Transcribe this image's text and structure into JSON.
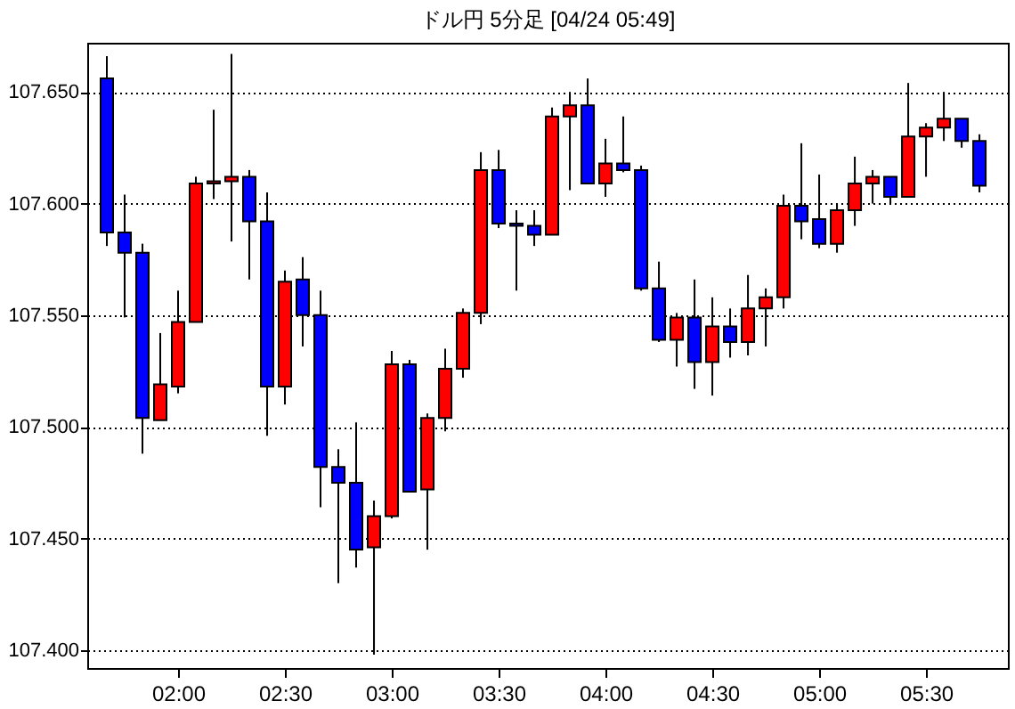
{
  "chart_data": {
    "type": "candlestick",
    "title": "ドル円 5分足 [04/24 05:49]",
    "x": [
      1.6667,
      1.75,
      1.8333,
      1.9167,
      2,
      2.0833,
      2.1667,
      2.25,
      2.3333,
      2.4167,
      2.5,
      2.5833,
      2.6667,
      2.75,
      2.8333,
      2.9167,
      3,
      3.0833,
      3.1667,
      3.25,
      3.3333,
      3.4167,
      3.5,
      3.5833,
      3.6667,
      3.75,
      3.8333,
      3.9167,
      4,
      4.0833,
      4.1667,
      4.25,
      4.3333,
      4.4167,
      4.5,
      4.5833,
      4.6667,
      4.75,
      4.8333,
      4.9167,
      5,
      5.0833,
      5.1667,
      5.25,
      5.3333,
      5.4167,
      5.5,
      5.5833,
      5.6667,
      5.75
    ],
    "ohlc": [
      [
        107.656,
        107.666,
        107.581,
        107.587
      ],
      [
        107.587,
        107.604,
        107.549,
        107.578
      ],
      [
        107.578,
        107.582,
        107.488,
        107.504
      ],
      [
        107.503,
        107.542,
        107.503,
        107.519
      ],
      [
        107.518,
        107.561,
        107.515,
        107.547
      ],
      [
        107.547,
        107.612,
        107.547,
        107.609
      ],
      [
        107.609,
        107.642,
        107.602,
        107.61
      ],
      [
        107.61,
        107.667,
        107.583,
        107.612
      ],
      [
        107.612,
        107.615,
        107.566,
        107.592
      ],
      [
        107.592,
        107.605,
        107.496,
        107.518
      ],
      [
        107.518,
        107.57,
        107.51,
        107.565
      ],
      [
        107.566,
        107.576,
        107.536,
        107.55
      ],
      [
        107.55,
        107.561,
        107.464,
        107.482
      ],
      [
        107.482,
        107.49,
        107.43,
        107.475
      ],
      [
        107.475,
        107.502,
        107.437,
        107.445
      ],
      [
        107.446,
        107.467,
        107.398,
        107.46
      ],
      [
        107.46,
        107.534,
        107.459,
        107.528
      ],
      [
        107.528,
        107.53,
        107.471,
        107.471
      ],
      [
        107.472,
        107.506,
        107.445,
        107.504
      ],
      [
        107.504,
        107.535,
        107.498,
        107.526
      ],
      [
        107.526,
        107.553,
        107.522,
        107.551
      ],
      [
        107.551,
        107.623,
        107.546,
        107.615
      ],
      [
        107.615,
        107.624,
        107.589,
        107.591
      ],
      [
        107.591,
        107.597,
        107.561,
        107.59
      ],
      [
        107.59,
        107.597,
        107.581,
        107.586
      ],
      [
        107.586,
        107.643,
        107.586,
        107.639
      ],
      [
        107.639,
        107.65,
        107.606,
        107.644
      ],
      [
        107.644,
        107.656,
        107.609,
        107.609
      ],
      [
        107.609,
        107.629,
        107.603,
        107.618
      ],
      [
        107.618,
        107.639,
        107.614,
        107.615
      ],
      [
        107.615,
        107.617,
        107.561,
        107.562
      ],
      [
        107.562,
        107.574,
        107.538,
        107.539
      ],
      [
        107.539,
        107.551,
        107.527,
        107.549
      ],
      [
        107.549,
        107.566,
        107.517,
        107.529
      ],
      [
        107.529,
        107.558,
        107.514,
        107.545
      ],
      [
        107.545,
        107.553,
        107.531,
        107.538
      ],
      [
        107.538,
        107.568,
        107.532,
        107.553
      ],
      [
        107.553,
        107.562,
        107.536,
        107.558
      ],
      [
        107.558,
        107.604,
        107.553,
        107.599
      ],
      [
        107.599,
        107.627,
        107.584,
        107.592
      ],
      [
        107.593,
        107.613,
        107.58,
        107.582
      ],
      [
        107.582,
        107.6,
        107.578,
        107.597
      ],
      [
        107.597,
        107.621,
        107.59,
        107.609
      ],
      [
        107.609,
        107.615,
        107.6,
        107.612
      ],
      [
        107.612,
        107.612,
        107.6,
        107.603
      ],
      [
        107.603,
        107.654,
        107.603,
        107.63
      ],
      [
        107.63,
        107.636,
        107.612,
        107.634
      ],
      [
        107.634,
        107.65,
        107.628,
        107.638
      ],
      [
        107.638,
        107.638,
        107.625,
        107.628
      ],
      [
        107.628,
        107.631,
        107.605,
        107.608
      ]
    ],
    "colors": [
      "#0000ff",
      "#0000ff",
      "#0000ff",
      "#ff0000",
      "#ff0000",
      "#ff0000",
      "#ff0000",
      "#ff0000",
      "#0000ff",
      "#0000ff",
      "#ff0000",
      "#0000ff",
      "#0000ff",
      "#0000ff",
      "#0000ff",
      "#ff0000",
      "#ff0000",
      "#0000ff",
      "#ff0000",
      "#ff0000",
      "#ff0000",
      "#ff0000",
      "#0000ff",
      "#0000ff",
      "#0000ff",
      "#ff0000",
      "#ff0000",
      "#0000ff",
      "#ff0000",
      "#0000ff",
      "#0000ff",
      "#0000ff",
      "#ff0000",
      "#0000ff",
      "#ff0000",
      "#0000ff",
      "#ff0000",
      "#ff0000",
      "#ff0000",
      "#0000ff",
      "#0000ff",
      "#ff0000",
      "#ff0000",
      "#ff0000",
      "#0000ff",
      "#ff0000",
      "#ff0000",
      "#ff0000",
      "#0000ff",
      "#0000ff"
    ],
    "xlim": [
      1.575,
      5.883
    ],
    "xticks": [
      {
        "value": 2,
        "label": "02:00"
      },
      {
        "value": 2.5,
        "label": "02:30"
      },
      {
        "value": 3,
        "label": "03:00"
      },
      {
        "value": 3.5,
        "label": "03:30"
      },
      {
        "value": 4,
        "label": "04:00"
      },
      {
        "value": 4.5,
        "label": "04:30"
      },
      {
        "value": 5,
        "label": "05:00"
      },
      {
        "value": 5.5,
        "label": "05:30"
      }
    ],
    "ylim": [
      107.392,
      107.672
    ],
    "yticks": [
      {
        "value": 107.4,
        "label": "107.400"
      },
      {
        "value": 107.45,
        "label": "107.450"
      },
      {
        "value": 107.5,
        "label": "107.500"
      },
      {
        "value": 107.55,
        "label": "107.550"
      },
      {
        "value": 107.6,
        "label": "107.600"
      },
      {
        "value": 107.65,
        "label": "107.650"
      }
    ],
    "grid": "y"
  }
}
